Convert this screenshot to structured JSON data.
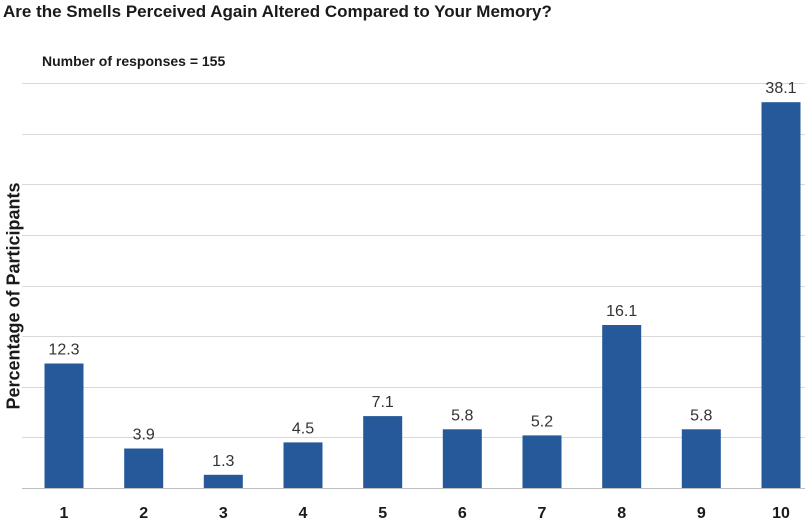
{
  "chart_data": {
    "type": "bar",
    "title": "Are the Smells Perceived Again Altered Compared to Your Memory?",
    "subtitle": "Number of responses = 155",
    "xlabel": "",
    "ylabel": "Percentage of Participants",
    "categories": [
      "1",
      "2",
      "3",
      "4",
      "5",
      "6",
      "7",
      "8",
      "9",
      "10"
    ],
    "values": [
      12.3,
      3.9,
      1.3,
      4.5,
      7.1,
      5.8,
      5.2,
      16.1,
      5.8,
      38.1
    ],
    "data_labels": [
      "12.3",
      "3.9",
      "1.3",
      "4.5",
      "7.1",
      "5.8",
      "5.2",
      "16.1",
      "5.8",
      "38.1"
    ],
    "ylim": [
      0,
      40
    ],
    "y_gridlines": [
      5,
      10,
      15,
      20,
      25,
      30,
      35,
      40
    ],
    "bar_color": "#25599a",
    "grid": true,
    "legend": "none"
  }
}
